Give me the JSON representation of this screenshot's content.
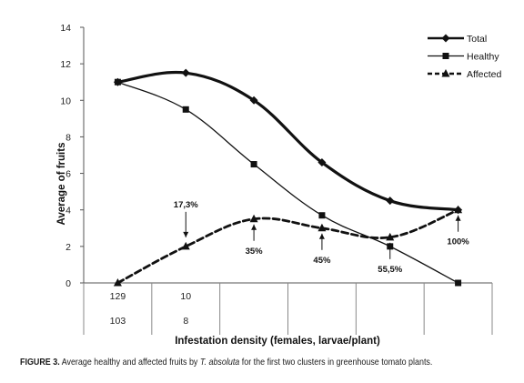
{
  "chart_data": {
    "type": "line",
    "xlabel": "Infestation density (females, larvae/plant)",
    "ylabel": "Average of fruits",
    "ylim": [
      0,
      14
    ],
    "yticks": [
      0,
      2,
      4,
      6,
      8,
      10,
      12,
      14
    ],
    "x_tick_rows": [
      [
        "129",
        "10",
        "",
        "",
        "",
        ""
      ],
      [
        "103",
        "8",
        "",
        "",
        "",
        ""
      ]
    ],
    "series": [
      {
        "name": "Total",
        "values": [
          11,
          11.5,
          10,
          6.6,
          4.5,
          4
        ],
        "style": "solid-thick",
        "marker": "diamond"
      },
      {
        "name": "Healthy",
        "values": [
          11,
          9.5,
          6.5,
          3.7,
          2,
          0
        ],
        "style": "solid-thin",
        "marker": "square"
      },
      {
        "name": "Affected",
        "values": [
          0,
          2,
          3.5,
          3,
          2.5,
          4
        ],
        "style": "dashed",
        "marker": "triangle"
      }
    ],
    "annotations": [
      "17,3%",
      "35%",
      "45%",
      "55,5%",
      "100%"
    ],
    "legend_position": "top-right",
    "grid": false,
    "caption": {
      "label": "FIGURE 3.",
      "text_before": "Average healthy and affected fruits by",
      "species": "T. absoluta",
      "text_after": "for the first two clusters in greenhouse tomato plants."
    }
  }
}
